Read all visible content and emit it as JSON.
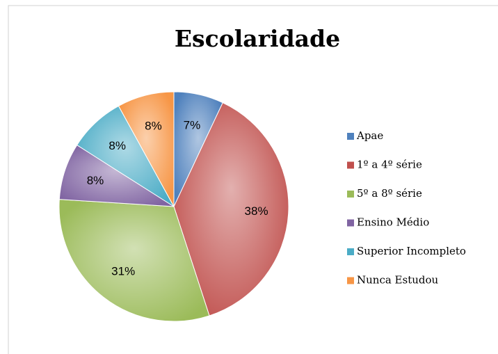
{
  "chart_data": {
    "type": "pie",
    "title": "Escolaridade",
    "categories": [
      "Apae",
      "1º a 4º série",
      "5º a 8º série",
      "Ensino Médio",
      "Superior Incompleto",
      "Nunca Estudou"
    ],
    "values": [
      7,
      38,
      31,
      8,
      8,
      8
    ],
    "value_labels": [
      "7%",
      "38%",
      "31%",
      "8%",
      "8%",
      "8%"
    ],
    "colors": [
      "#4f81bd",
      "#c0504d",
      "#9bbb59",
      "#8064a2",
      "#4bacc6",
      "#f79646"
    ],
    "legend": "right"
  }
}
